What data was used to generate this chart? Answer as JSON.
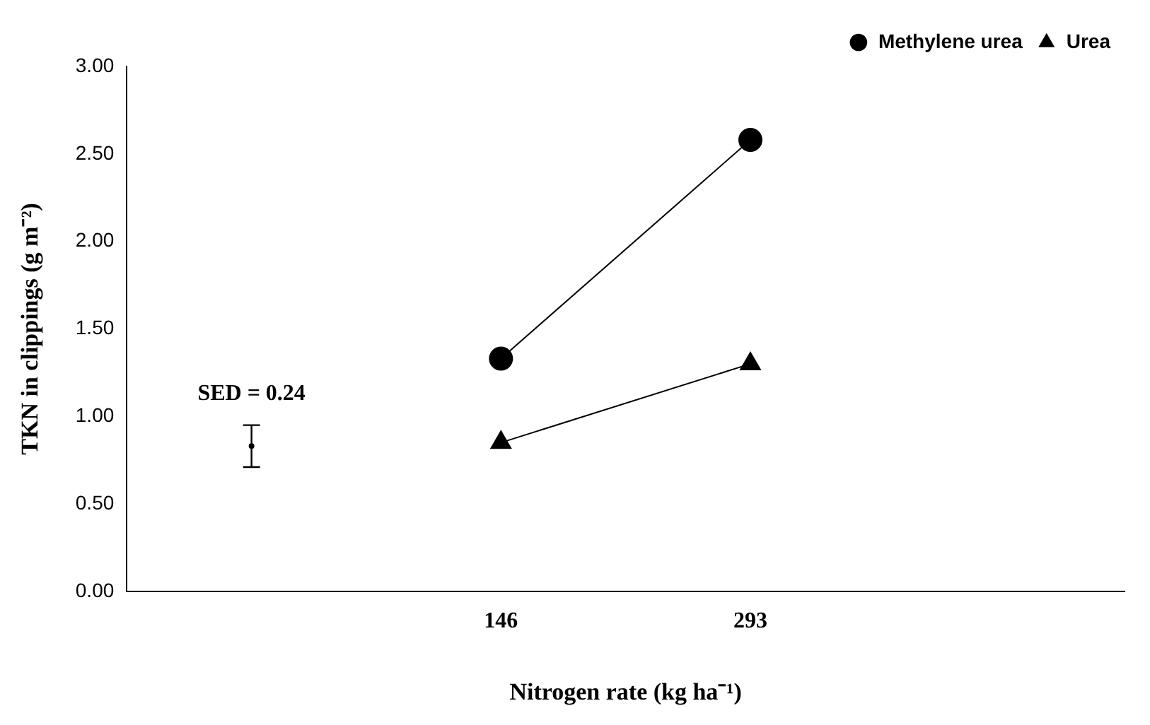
{
  "chart_data": {
    "type": "line",
    "xlabel": "Nitrogen rate (kg ha⁻¹)",
    "ylabel": "TKN in clippings (g m⁻²)",
    "categories": [
      null,
      "146",
      "293",
      null
    ],
    "series": [
      {
        "name": "Methylene urea",
        "color": "#000000",
        "marker": "circle",
        "values": [
          null,
          1.33,
          2.58,
          null
        ]
      },
      {
        "name": "Urea",
        "color": "#000000",
        "marker": "triangle",
        "values": [
          null,
          0.85,
          1.3,
          null
        ]
      },
      {
        "color": "#000000",
        "marker": "circle",
        "values": [
          0.83,
          null,
          null,
          null
        ],
        "errors": [
          [
            0.71,
            0.95
          ],
          null,
          null,
          null
        ]
      }
    ],
    "ylim": [
      0,
      3
    ],
    "yticks": [
      {
        "value": 0,
        "label": "0.00"
      },
      {
        "value": 0.5,
        "label": "0.50"
      },
      {
        "value": 1,
        "label": "1.00"
      },
      {
        "value": 1.5,
        "label": "1.50"
      },
      {
        "value": 2,
        "label": "2.00"
      },
      {
        "value": 2.5,
        "label": "2.50"
      },
      {
        "value": 3,
        "label": "3.00"
      }
    ],
    "annotations": [
      "SED = 0.24"
    ],
    "grid": false,
    "legend": "top right"
  }
}
